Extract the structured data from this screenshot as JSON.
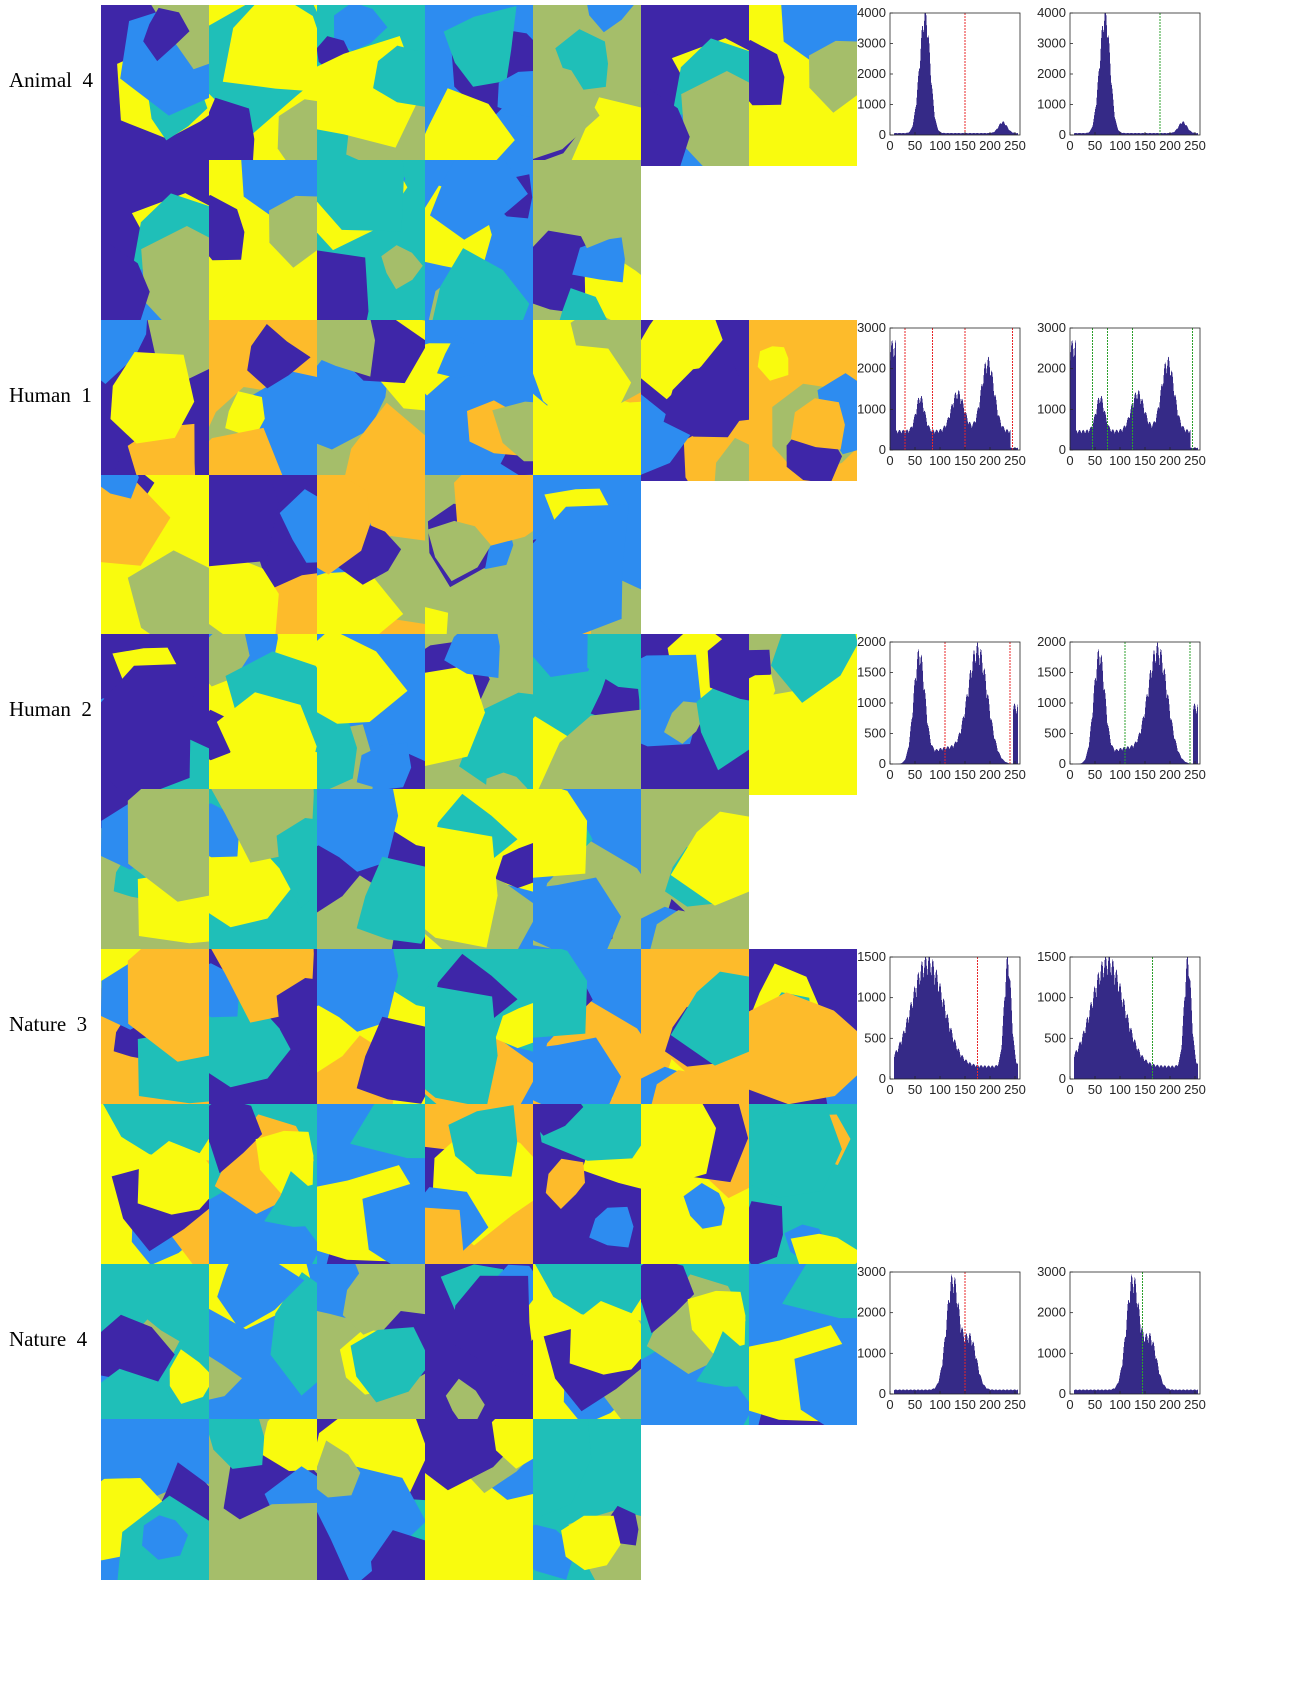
{
  "groups": [
    {
      "label": "Animal  4",
      "row1_count": 7,
      "row2_count": 5,
      "hist": {
        "ymax": 4000,
        "yticks": [
          "0",
          "1000",
          "2000",
          "3000",
          "4000"
        ],
        "red_lines": [
          150
        ],
        "green_lines": [
          180
        ],
        "profile": "animal4"
      }
    },
    {
      "label": "Human  1",
      "row1_count": 7,
      "row2_count": 5,
      "hist": {
        "ymax": 3000,
        "yticks": [
          "0",
          "1000",
          "2000",
          "3000"
        ],
        "red_lines": [
          30,
          85,
          150,
          245
        ],
        "green_lines": [
          45,
          75,
          125,
          245
        ],
        "profile": "human1"
      }
    },
    {
      "label": "Human  2",
      "row1_count": 7,
      "row2_count": 6,
      "hist": {
        "ymax": 2000,
        "yticks": [
          "0",
          "500",
          "1000",
          "1500",
          "2000"
        ],
        "red_lines": [
          110,
          240
        ],
        "green_lines": [
          110,
          240
        ],
        "profile": "human2"
      }
    },
    {
      "label": "Nature  3",
      "row1_count": 7,
      "row2_count": 7,
      "hist": {
        "ymax": 1500,
        "yticks": [
          "0",
          "500",
          "1000",
          "1500"
        ],
        "red_lines": [
          175
        ],
        "green_lines": [
          165
        ],
        "profile": "nature3"
      }
    },
    {
      "label": "Nature  4",
      "row1_count": 7,
      "row2_count": 5,
      "hist": {
        "ymax": 3000,
        "yticks": [
          "0",
          "1000",
          "2000",
          "3000"
        ],
        "red_lines": [
          150
        ],
        "green_lines": [
          145
        ],
        "profile": "nature4"
      }
    }
  ],
  "xticks": [
    "0",
    "50",
    "100",
    "150",
    "200",
    "250"
  ],
  "colors": {
    "bar": "#352a87",
    "red": "#e8272a",
    "green": "#2ca02c",
    "deep": "#3e26a8",
    "teal": "#1fbfb8",
    "yellow": "#f9fb0e",
    "blue": "#2d8cf0",
    "orange": "#fdbb2b",
    "olive": "#a5be6a"
  }
}
